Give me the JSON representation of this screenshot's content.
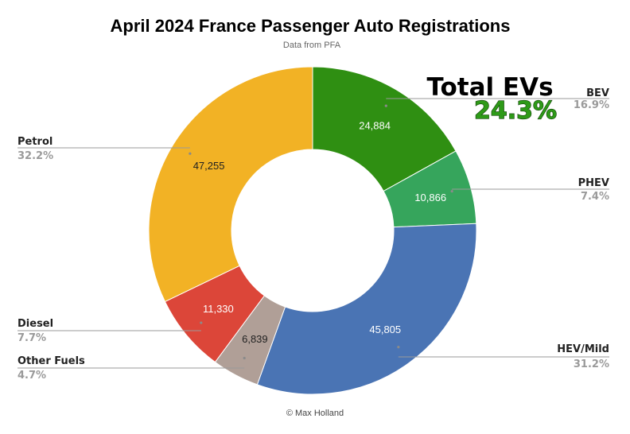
{
  "chart_data": {
    "type": "pie",
    "donut": true,
    "title": "April 2024 France Passenger Auto Registrations",
    "subtitle": "Data from PFA",
    "credit": "© Max Holland",
    "callout": {
      "title": "Total EVs",
      "value": "24.3%",
      "value_color": "#2e9a18"
    },
    "slices": [
      {
        "label": "BEV",
        "value": 24884,
        "value_label": "24,884",
        "percent_label": "16.9%",
        "color": "#2f8f12",
        "value_text_color": "#ffffff"
      },
      {
        "label": "PHEV",
        "value": 10866,
        "value_label": "10,866",
        "percent_label": "7.4%",
        "color": "#36a55c",
        "value_text_color": "#ffffff"
      },
      {
        "label": "HEV/Mild",
        "value": 45805,
        "value_label": "45,805",
        "percent_label": "31.2%",
        "color": "#4a74b4",
        "value_text_color": "#ffffff"
      },
      {
        "label": "Other Fuels",
        "value": 6839,
        "value_label": "6,839",
        "percent_label": "4.7%",
        "color": "#b09f97",
        "value_text_color": "#222222"
      },
      {
        "label": "Diesel",
        "value": 11330,
        "value_label": "11,330",
        "percent_label": "7.7%",
        "color": "#dc4639",
        "value_text_color": "#ffffff"
      },
      {
        "label": "Petrol",
        "value": 47255,
        "value_label": "47,255",
        "percent_label": "32.2%",
        "color": "#f2b225",
        "value_text_color": "#222222"
      }
    ]
  }
}
